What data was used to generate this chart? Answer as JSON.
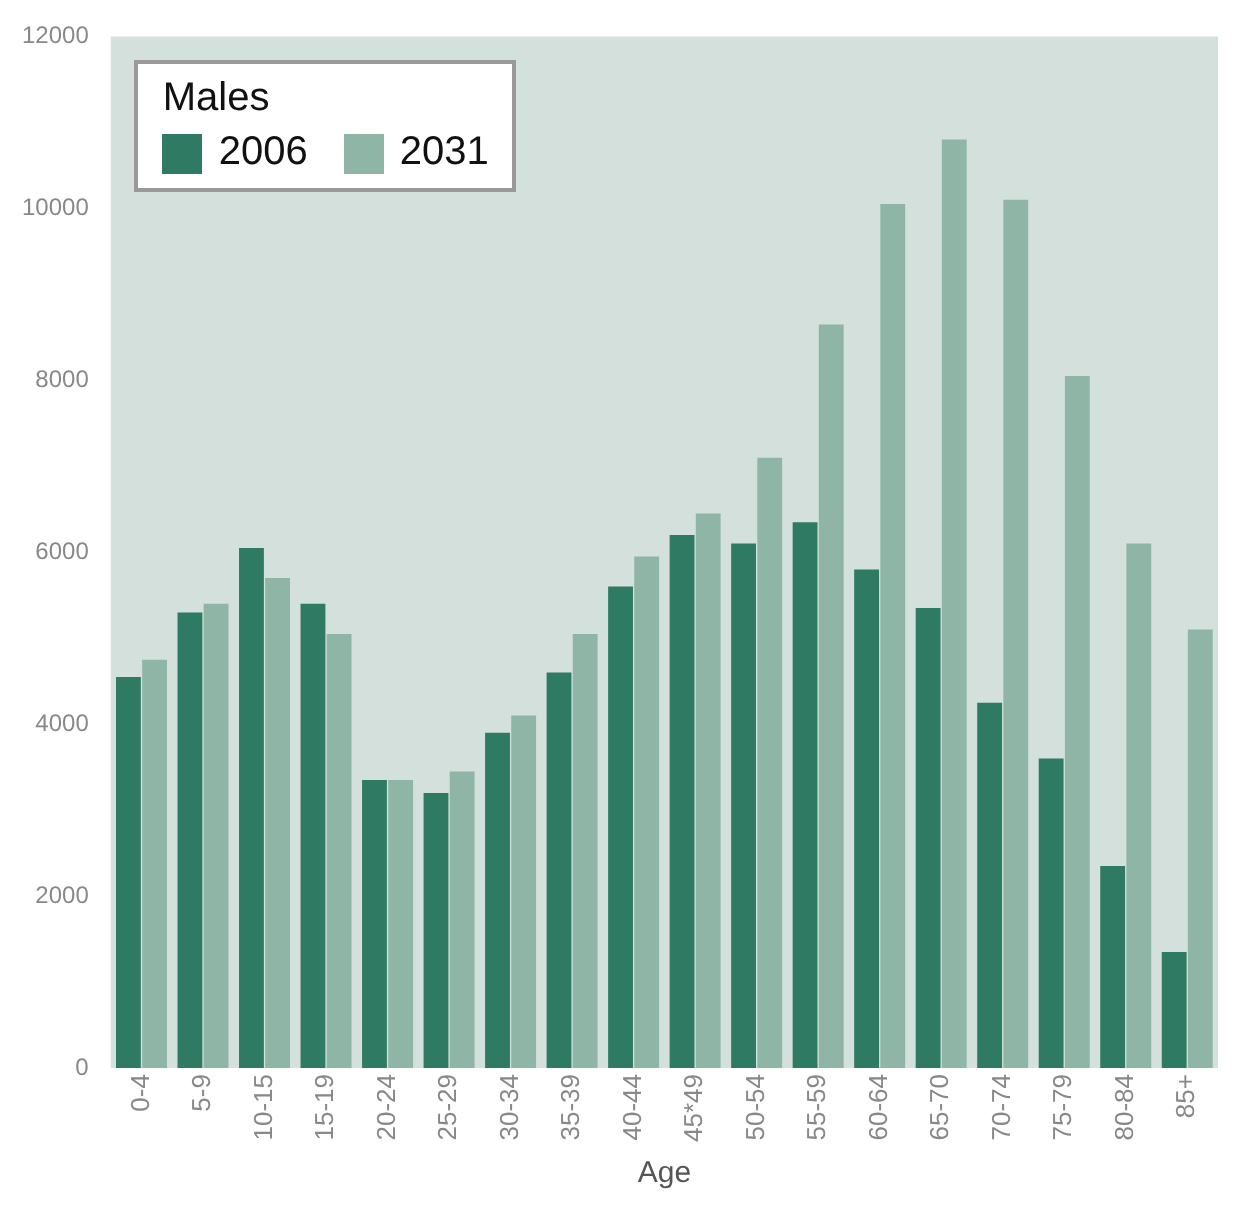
{
  "chart_data": {
    "type": "bar",
    "xlabel": "Age",
    "legend_title": "Males",
    "legend": "top left",
    "grid": false,
    "categories": [
      "0-4",
      "5-9",
      "10-15",
      "15-19",
      "20-24",
      "25-29",
      "30-34",
      "35-39",
      "40-44",
      "45*49",
      "50-54",
      "55-59",
      "60-64",
      "65-70",
      "70-74",
      "75-79",
      "80-84",
      "85+"
    ],
    "series": [
      {
        "name": "2006",
        "color": "#2e7a62",
        "values": [
          4550,
          5300,
          6050,
          5400,
          3350,
          3200,
          3900,
          4600,
          5600,
          6200,
          6100,
          6350,
          5800,
          5350,
          4250,
          3600,
          2350,
          1350
        ]
      },
      {
        "name": "2031",
        "color": "#8fb5a6",
        "values": [
          4750,
          5400,
          5700,
          5050,
          3350,
          3450,
          4100,
          5050,
          5950,
          6450,
          7100,
          8650,
          10050,
          10800,
          10100,
          8050,
          6100,
          5100
        ]
      }
    ],
    "ylim": [
      0,
      12000
    ],
    "yticks": [
      0,
      2000,
      4000,
      6000,
      8000,
      10000,
      12000
    ]
  }
}
